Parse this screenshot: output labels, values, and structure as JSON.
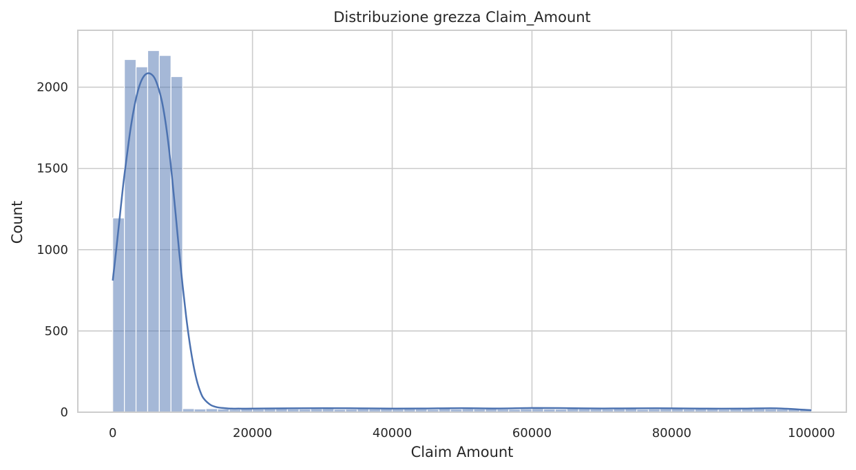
{
  "chart_data": {
    "type": "bar",
    "title": "Distribuzione grezza Claim_Amount",
    "xlabel": "Claim Amount",
    "ylabel": "Count",
    "xlim": [
      -5000,
      105000
    ],
    "ylim": [
      0,
      2350
    ],
    "xticks": [
      0,
      20000,
      40000,
      60000,
      80000,
      100000
    ],
    "yticks": [
      0,
      500,
      1000,
      1500,
      2000
    ],
    "grid": true,
    "bin_width": 1666.67,
    "bins_start": 0,
    "values": [
      1195,
      2170,
      2125,
      2225,
      2195,
      2065,
      22,
      20,
      22,
      20,
      18,
      20,
      19,
      21,
      22,
      20,
      19,
      21,
      22,
      18,
      19,
      21,
      20,
      22,
      19,
      21,
      20,
      18,
      22,
      19,
      21,
      20,
      22,
      19,
      18,
      21,
      23,
      20,
      19,
      22,
      21,
      20,
      19,
      21,
      22,
      18,
      20,
      21,
      22,
      19,
      20,
      21,
      18,
      20,
      22,
      21,
      20,
      19,
      21,
      17
    ],
    "kde": {
      "x": [
        0,
        500,
        1000,
        1500,
        2000,
        2500,
        3000,
        3500,
        4000,
        4500,
        5000,
        5500,
        6000,
        6500,
        7000,
        7500,
        8000,
        8500,
        9000,
        9500,
        10000,
        10500,
        11000,
        11500,
        12000,
        12500,
        13000,
        14000,
        15000,
        16000,
        17000,
        18000,
        20000,
        25000,
        30000,
        35000,
        40000,
        45000,
        50000,
        55000,
        60000,
        65000,
        70000,
        75000,
        80000,
        85000,
        90000,
        95000,
        100000
      ],
      "y": [
        810,
        1000,
        1200,
        1400,
        1570,
        1730,
        1860,
        1960,
        2030,
        2070,
        2085,
        2080,
        2055,
        2000,
        1920,
        1800,
        1640,
        1440,
        1220,
        990,
        780,
        590,
        430,
        300,
        200,
        130,
        85,
        45,
        30,
        25,
        22,
        22,
        22,
        24,
        25,
        24,
        22,
        23,
        25,
        23,
        26,
        25,
        23,
        24,
        24,
        22,
        22,
        24,
        12
      ]
    }
  }
}
